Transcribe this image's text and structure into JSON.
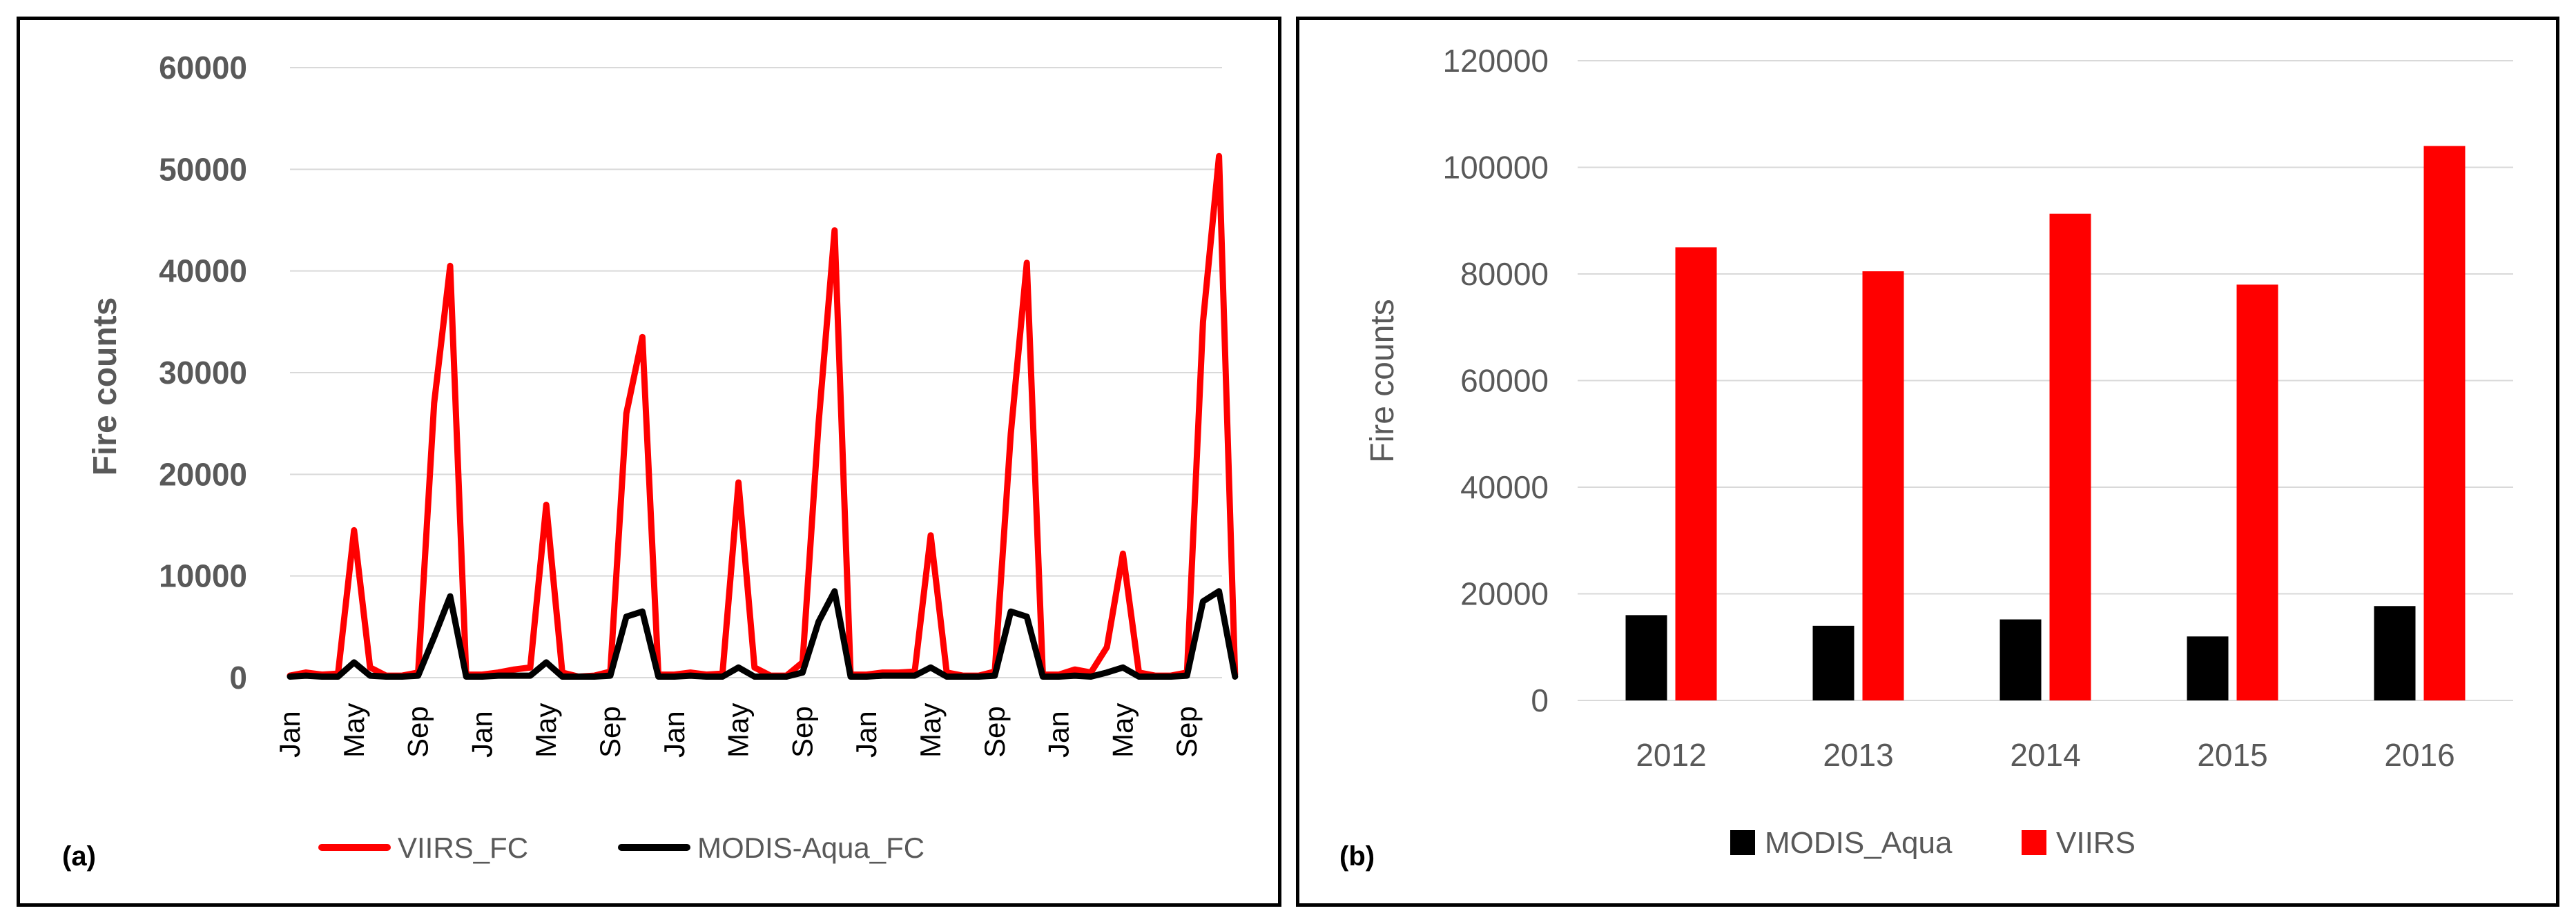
{
  "chart_data": [
    {
      "panel_label": "(a)",
      "type": "line",
      "title": "",
      "xlabel": "",
      "ylabel": "Fire counts",
      "ylim": [
        0,
        60000
      ],
      "yticks": [
        "0",
        "10000",
        "20000",
        "30000",
        "40000",
        "50000",
        "60000"
      ],
      "x_tick_labels": [
        "Jan",
        "May",
        "Sep",
        "Jan",
        "May",
        "Sep",
        "Jan",
        "May",
        "Sep",
        "Jan",
        "May",
        "Sep",
        "Jan",
        "May",
        "Sep"
      ],
      "x_tick_month_index": [
        0,
        4,
        8,
        12,
        16,
        20,
        24,
        28,
        32,
        36,
        40,
        44,
        48,
        52,
        56
      ],
      "n_points": 60,
      "series": [
        {
          "name": "VIIRS_FC",
          "color": "#ff0000",
          "values": [
            200,
            500,
            300,
            400,
            14500,
            1000,
            200,
            200,
            500,
            27000,
            40500,
            300,
            300,
            500,
            800,
            1000,
            17000,
            500,
            100,
            200,
            600,
            26000,
            33500,
            300,
            300,
            500,
            300,
            400,
            19200,
            1000,
            200,
            200,
            1500,
            25000,
            44000,
            300,
            300,
            500,
            500,
            600,
            14000,
            500,
            200,
            200,
            600,
            24000,
            40800,
            300,
            300,
            800,
            500,
            3000,
            12200,
            500,
            200,
            200,
            500,
            35000,
            51300,
            300
          ]
        },
        {
          "name": "MODIS-Aqua_FC",
          "color": "#000000",
          "values": [
            100,
            200,
            100,
            100,
            1500,
            200,
            100,
            100,
            200,
            4000,
            8000,
            100,
            100,
            200,
            200,
            200,
            1500,
            100,
            100,
            100,
            200,
            6000,
            6500,
            100,
            100,
            200,
            100,
            100,
            1000,
            100,
            100,
            100,
            500,
            5500,
            8500,
            100,
            100,
            200,
            200,
            200,
            1000,
            100,
            100,
            100,
            200,
            6500,
            6000,
            100,
            100,
            200,
            100,
            500,
            1000,
            100,
            100,
            100,
            200,
            7500,
            8500,
            100
          ]
        }
      ],
      "legend": [
        "VIIRS_FC",
        "MODIS-Aqua_FC"
      ],
      "legend_position": "bottom",
      "grid": true
    },
    {
      "panel_label": "(b)",
      "type": "bar",
      "title": "",
      "xlabel": "",
      "ylabel": "Fire counts",
      "ylim": [
        0,
        120000
      ],
      "yticks": [
        "0",
        "20000",
        "40000",
        "60000",
        "80000",
        "100000",
        "120000"
      ],
      "categories": [
        "2012",
        "2013",
        "2014",
        "2015",
        "2016"
      ],
      "series": [
        {
          "name": "MODIS_Aqua",
          "color": "#000000",
          "values": [
            16000,
            14000,
            15200,
            12000,
            17700
          ]
        },
        {
          "name": "VIIRS",
          "color": "#ff0000",
          "values": [
            85000,
            80500,
            91300,
            78000,
            104000
          ]
        }
      ],
      "legend": [
        "MODIS_Aqua",
        "VIIRS"
      ],
      "legend_position": "bottom",
      "grid": true
    }
  ]
}
